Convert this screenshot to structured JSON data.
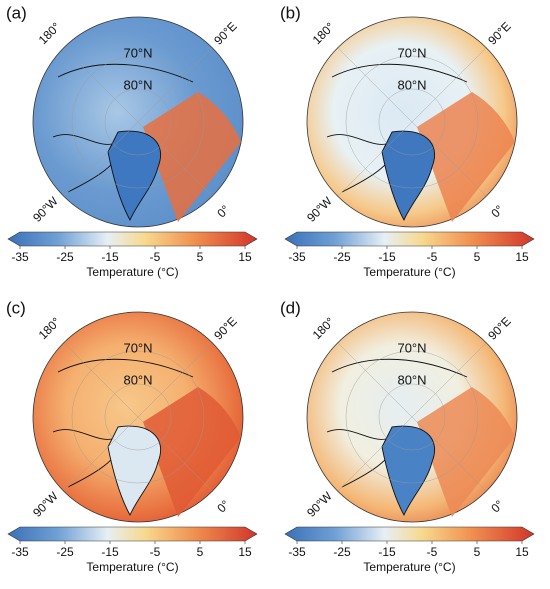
{
  "panels": [
    {
      "label": "(a)",
      "lat_labels": [
        "70°N",
        "80°N"
      ],
      "lon_labels": [
        "180°",
        "90°E",
        "90°W",
        "0°"
      ],
      "colorbar": {
        "label": "Temperature (°C)",
        "lim": [
          -35,
          15
        ],
        "ticks": [
          -35,
          -25,
          -15,
          -5,
          5,
          15
        ]
      }
    },
    {
      "label": "(b)",
      "lat_labels": [
        "70°N",
        "80°N"
      ],
      "lon_labels": [
        "180°",
        "90°E",
        "90°W",
        "0°"
      ],
      "colorbar": {
        "label": "Temperature (°C)",
        "lim": [
          -35,
          15
        ],
        "ticks": [
          -35,
          -25,
          -15,
          -5,
          5,
          15
        ]
      }
    },
    {
      "label": "(c)",
      "lat_labels": [
        "70°N",
        "80°N"
      ],
      "lon_labels": [
        "180°",
        "90°E",
        "90°W",
        "0°"
      ],
      "colorbar": {
        "label": "Temperature (°C)",
        "lim": [
          -35,
          15
        ],
        "ticks": [
          -35,
          -25,
          -15,
          -5,
          5,
          15
        ]
      }
    },
    {
      "label": "(d)",
      "lat_labels": [
        "70°N",
        "80°N"
      ],
      "lon_labels": [
        "180°",
        "90°E",
        "90°W",
        "0°"
      ],
      "colorbar": {
        "label": "Temperature (°C)",
        "lim": [
          -35,
          15
        ],
        "ticks": [
          -35,
          -25,
          -15,
          -5,
          5,
          15
        ]
      }
    }
  ]
}
